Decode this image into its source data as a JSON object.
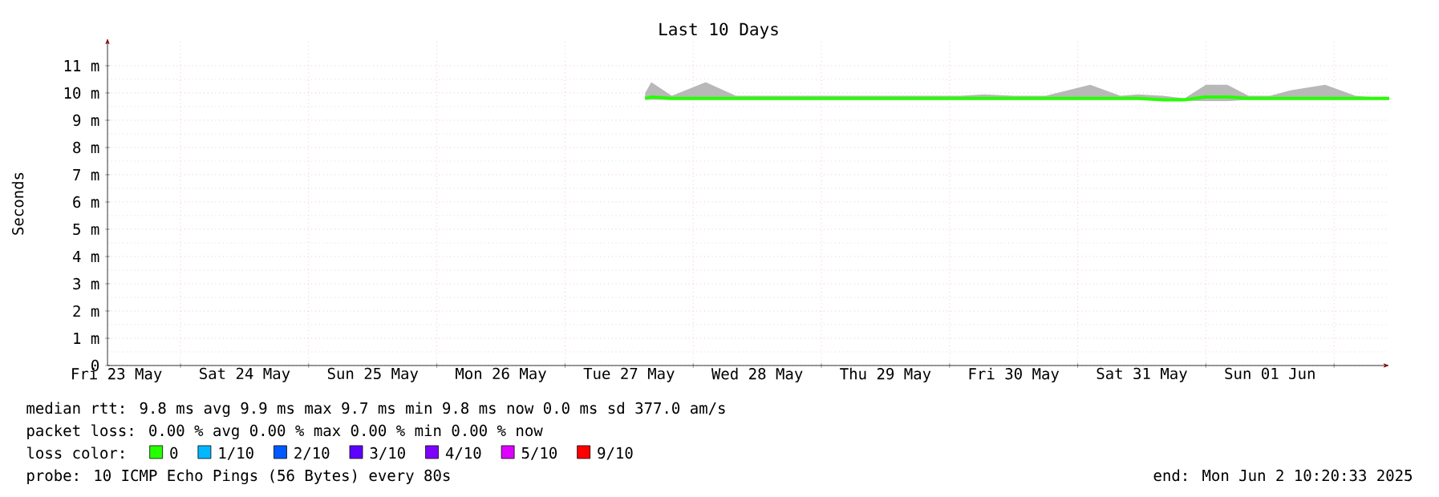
{
  "chart_data": {
    "type": "line",
    "title": "Last 10 Days",
    "ylabel": "Seconds",
    "legend_title": "loss color:",
    "legend": "bottom",
    "grid": true,
    "xlim": [
      "2025-05-23T10:20",
      "2025-06-02T10:20"
    ],
    "ylim": [
      0,
      12
    ],
    "xticks": [
      {
        "value": "2025-05-24T00:00",
        "label": null
      },
      {
        "value": "2025-05-25T00:00",
        "label": null
      },
      {
        "value": "2025-05-26T00:00",
        "label": null
      },
      {
        "value": "2025-05-27T00:00",
        "label": null
      },
      {
        "value": "2025-05-28T00:00",
        "label": null
      },
      {
        "value": "2025-05-29T00:00",
        "label": null
      },
      {
        "value": "2025-05-30T00:00",
        "label": null
      },
      {
        "value": "2025-05-31T00:00",
        "label": null
      },
      {
        "value": "2025-06-01T00:00",
        "label": null
      },
      {
        "value": "2025-06-02T00:00",
        "label": null
      },
      {
        "value": "2025-05-23T12:00",
        "label": "Fri 23 May"
      },
      {
        "value": "2025-05-24T12:00",
        "label": "Sat 24 May"
      },
      {
        "value": "2025-05-25T12:00",
        "label": "Sun 25 May"
      },
      {
        "value": "2025-05-26T12:00",
        "label": "Mon 26 May"
      },
      {
        "value": "2025-05-27T12:00",
        "label": "Tue 27 May"
      },
      {
        "value": "2025-05-28T12:00",
        "label": "Wed 28 May"
      },
      {
        "value": "2025-05-29T12:00",
        "label": "Thu 29 May"
      },
      {
        "value": "2025-05-30T12:00",
        "label": "Fri 30 May"
      },
      {
        "value": "2025-05-31T12:00",
        "label": "Sat 31 May"
      },
      {
        "value": "2025-06-01T12:00",
        "label": "Sun 01 Jun"
      }
    ],
    "yticks": [
      0,
      {
        "value": 1,
        "label": "1 m"
      },
      {
        "value": 2,
        "label": "2 m"
      },
      {
        "value": 3,
        "label": "3 m"
      },
      {
        "value": 4,
        "label": "4 m"
      },
      {
        "value": 5,
        "label": "5 m"
      },
      {
        "value": 6,
        "label": "6 m"
      },
      {
        "value": 7,
        "label": "7 m"
      },
      {
        "value": 8,
        "label": "8 m"
      },
      {
        "value": 9,
        "label": "9 m"
      },
      {
        "value": 10,
        "label": "10 m"
      },
      {
        "value": 11,
        "label": "11 m"
      }
    ],
    "series": [
      {
        "name": "0",
        "color": "#26ff00",
        "x": [
          "2025-05-27T15:00",
          "2025-05-27T16:10",
          "2025-05-27T20:00",
          "2025-05-28T02:20",
          "2025-05-28T08:00",
          "2025-05-28T14:00",
          "2025-05-28T20:00",
          "2025-05-29T02:00",
          "2025-05-29T08:00",
          "2025-05-29T14:00",
          "2025-05-29T20:00",
          "2025-05-30T02:00",
          "2025-05-30T06:30",
          "2025-05-30T12:00",
          "2025-05-30T18:00",
          "2025-05-31T02:20",
          "2025-05-31T08:00",
          "2025-05-31T11:20",
          "2025-05-31T16:00",
          "2025-05-31T20:00",
          "2025-06-01T00:00",
          "2025-06-01T04:00",
          "2025-06-01T08:00",
          "2025-06-01T12:00",
          "2025-06-01T16:00",
          "2025-06-01T22:20",
          "2025-06-02T04:00",
          "2025-06-02T10:20"
        ],
        "values": [
          9.8,
          9.85,
          9.8,
          9.8,
          9.8,
          9.8,
          9.8,
          9.8,
          9.8,
          9.8,
          9.8,
          9.8,
          9.8,
          9.8,
          9.8,
          9.8,
          9.8,
          9.8,
          9.75,
          9.75,
          9.85,
          9.85,
          9.8,
          9.8,
          9.8,
          9.8,
          9.8,
          9.8
        ],
        "lower": [
          9.75,
          9.75,
          9.75,
          9.75,
          9.75,
          9.75,
          9.75,
          9.75,
          9.75,
          9.75,
          9.75,
          9.75,
          9.75,
          9.75,
          9.75,
          9.75,
          9.75,
          9.75,
          9.72,
          9.72,
          9.7,
          9.7,
          9.75,
          9.75,
          9.75,
          9.75,
          9.75,
          9.75
        ],
        "upper": [
          10,
          10.4,
          9.9,
          10.4,
          9.9,
          9.9,
          9.9,
          9.9,
          9.9,
          9.9,
          9.9,
          9.9,
          9.95,
          9.9,
          9.9,
          10.3,
          9.9,
          9.95,
          9.9,
          9.8,
          10.3,
          10.3,
          9.9,
          9.9,
          10.1,
          10.3,
          9.9,
          9.8
        ]
      },
      {
        "name": "1/10",
        "color": "#00b8ff"
      },
      {
        "name": "2/10",
        "color": "#0059ff"
      },
      {
        "name": "3/10",
        "color": "#5e00ff"
      },
      {
        "name": "4/10",
        "color": "#7e00ff"
      },
      {
        "name": "5/10",
        "color": "#dd00ff"
      },
      {
        "name": "9/10",
        "color": "#ff0000"
      }
    ],
    "annotations": [
      "median rtt: 9.8 ms avg 9.9 ms max 9.7 ms min 9.8 ms now 0.0 ms sd 377.0 am/s",
      "packet loss: 0.00 % avg 0.00 % max 0.00 % min 0.00 % now",
      "probe: 10 ICMP Echo Pings (56 Bytes) every 80s",
      "end: Mon Jun 2 10:20:33 2025"
    ]
  }
}
